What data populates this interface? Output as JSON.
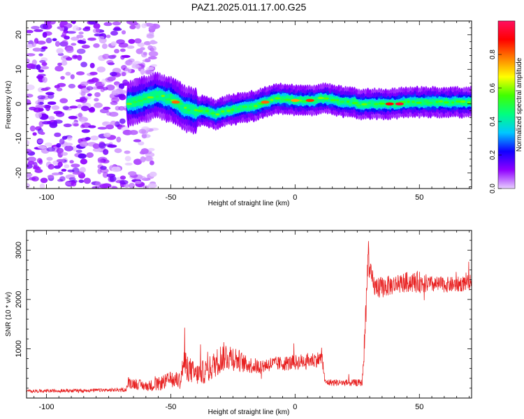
{
  "title": "PAZ1.2025.011.17.00.G25",
  "chart_data": [
    {
      "type": "heatmap",
      "xlabel": "Height of straight line (km)",
      "ylabel": "Frequency (Hz)",
      "xlim": [
        -108,
        71
      ],
      "ylim": [
        -24.5,
        24
      ],
      "xticks": [
        -100,
        -50,
        0,
        50
      ],
      "yticks": [
        -20,
        -10,
        0,
        10,
        20
      ],
      "grid": false,
      "colorbar": {
        "label": "Normalized spectral amplitude",
        "range": [
          0,
          1
        ],
        "ticks": [
          0.0,
          0.2,
          0.4,
          0.6,
          0.8
        ],
        "colormap": [
          "#e8d0ff",
          "#9000ff",
          "#1000ff",
          "#00c8ff",
          "#00ff80",
          "#40ff00",
          "#ffff00",
          "#ff8000",
          "#ff0000",
          "#ff1060"
        ]
      },
      "ridge": {
        "x": [
          -67,
          -64,
          -60,
          -55,
          -52,
          -50,
          -47,
          -44,
          -40,
          -36,
          -32,
          -28,
          -24,
          -20,
          -16,
          -12,
          -8,
          -4,
          0,
          4,
          8,
          10,
          12,
          16,
          20,
          24,
          26,
          28,
          32,
          36,
          40,
          45,
          50,
          55,
          60,
          65,
          71
        ],
        "y": [
          0,
          0.5,
          1.5,
          2.5,
          1.5,
          1.5,
          0,
          -1.5,
          -2.0,
          -2.0,
          -3.0,
          -2.0,
          -1.5,
          -1.0,
          -0.5,
          0.5,
          1.5,
          1.5,
          1.0,
          1.0,
          1.0,
          1.5,
          1.5,
          1.0,
          0.5,
          0.5,
          -0.5,
          0,
          0,
          0,
          0,
          0.5,
          0.5,
          0.5,
          0.5,
          0.5,
          0.5
        ],
        "peaks": [
          {
            "x": -48,
            "y": 0.5,
            "amplitude": 0.8
          },
          {
            "x": -12,
            "y": 0.5,
            "amplitude": 0.8
          },
          {
            "x": 0,
            "y": 1.0,
            "amplitude": 0.75
          },
          {
            "x": 6,
            "y": 1.0,
            "amplitude": 0.85
          },
          {
            "x": 38,
            "y": 0.0,
            "amplitude": 0.9
          },
          {
            "x": 42,
            "y": 0.0,
            "amplitude": 0.95
          }
        ]
      },
      "noise_region_x": [
        -108,
        -62
      ],
      "noise_amplitude_range": [
        0.0,
        0.15
      ]
    },
    {
      "type": "line",
      "xlabel": "Height of straight line (km)",
      "ylabel": "SNR (10 * v/v)",
      "xlim": [
        -108,
        71
      ],
      "ylim": [
        0,
        3400
      ],
      "xticks": [
        -100,
        -50,
        0,
        50
      ],
      "yticks": [
        1000,
        2000,
        3000
      ],
      "grid": false,
      "series": [
        {
          "color": "#e82020",
          "x": [
            -108,
            -90,
            -75,
            -68,
            -67,
            -60,
            -55,
            -50,
            -46,
            -45,
            -40,
            -35,
            -30,
            -28,
            -25,
            -20,
            -15,
            -10,
            -5,
            0,
            5,
            11,
            12,
            20,
            27,
            28,
            29,
            29.5,
            30,
            32,
            35,
            40,
            45,
            50,
            55,
            60,
            65,
            71
          ],
          "y": [
            140,
            150,
            160,
            170,
            320,
            240,
            280,
            380,
            360,
            700,
            470,
            560,
            800,
            860,
            830,
            690,
            640,
            690,
            700,
            720,
            760,
            800,
            320,
            310,
            310,
            1200,
            2400,
            3000,
            2550,
            2250,
            2250,
            2300,
            2350,
            2350,
            2300,
            2300,
            2300,
            2350
          ],
          "noise_amplitude": [
            30,
            35,
            35,
            40,
            120,
            100,
            140,
            160,
            180,
            320,
            220,
            260,
            300,
            300,
            280,
            180,
            160,
            150,
            150,
            160,
            160,
            160,
            70,
            70,
            70,
            300,
            350,
            350,
            250,
            200,
            220,
            200,
            210,
            220,
            170,
            160,
            160,
            160
          ]
        }
      ]
    }
  ]
}
